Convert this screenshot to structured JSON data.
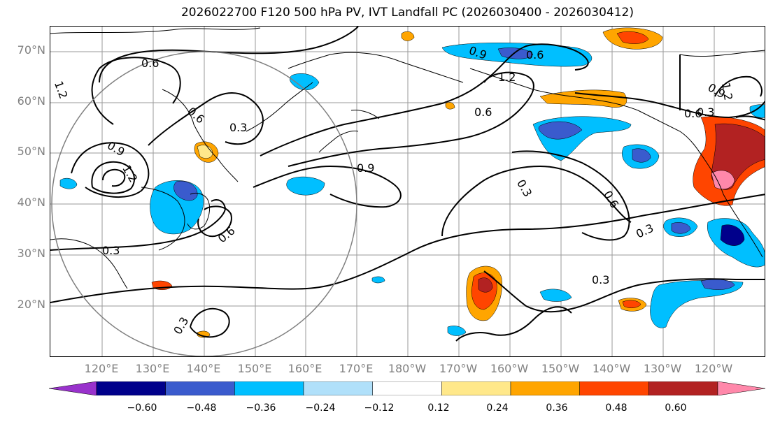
{
  "title": "2026022700 F120 500 hPa PV, IVT Landfall PC (2026030400 - 2026030412)",
  "lat_labels": [
    "70°N",
    "60°N",
    "50°N",
    "40°N",
    "30°N",
    "20°N"
  ],
  "lon_labels": [
    "120°E",
    "130°E",
    "140°E",
    "150°E",
    "160°E",
    "170°E",
    "180°W",
    "170°W",
    "160°W",
    "150°W",
    "140°W",
    "130°W",
    "120°W"
  ],
  "contour_labels": [
    "0.6",
    "1.2",
    "0.9",
    "1.2",
    "0.6",
    "0.3",
    "0.6",
    "0.3",
    "0.3",
    "0.9",
    "0.9",
    "0.6",
    "1.2",
    "0.6",
    "0.3",
    "0.6",
    "0.3",
    "0.6",
    "1.2",
    "0.3",
    "0.3",
    "0.9"
  ],
  "colorbar": {
    "tick_labels": [
      "−0.60",
      "−0.48",
      "−0.36",
      "−0.24",
      "−0.12",
      "0.12",
      "0.24",
      "0.36",
      "0.48",
      "0.60"
    ],
    "colors": [
      "#9932cc",
      "#00008b",
      "#3a5bcd",
      "#00bfff",
      "#b0e0fa",
      "#ffffff",
      "#ffe88a",
      "#ffa500",
      "#ff4500",
      "#b22222",
      "#ff88aa"
    ]
  },
  "colors": {
    "contour": "#000000",
    "coast": "#000000",
    "grid": "#808080",
    "circle": "#808080"
  }
}
